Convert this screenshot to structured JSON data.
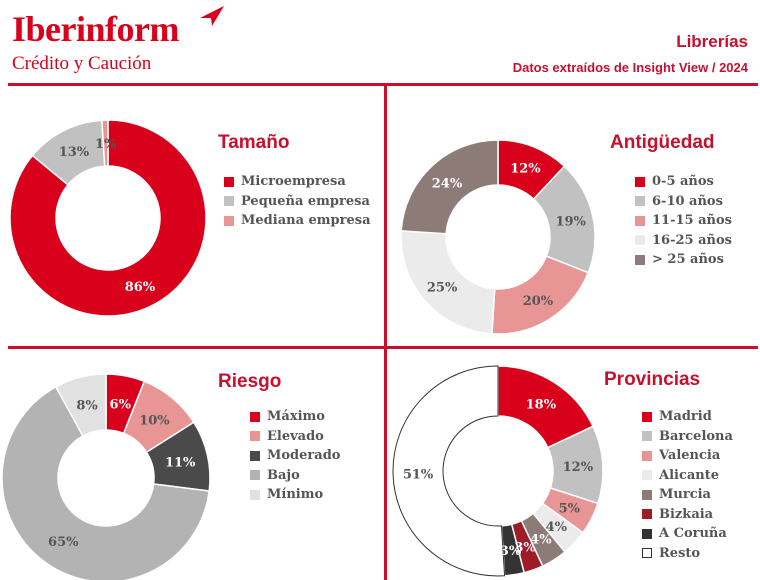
{
  "header": {
    "brand": "Iberinform",
    "tagline": "Crédito y Caución",
    "title": "Librerías",
    "subtitle": "Datos extraídos de Insight View / 2024"
  },
  "colors": {
    "brand_red": "#d9001b",
    "divider": "#c8102e"
  },
  "chart_data": [
    {
      "type": "pie",
      "title": "Tamaño",
      "categories": [
        "Microempresa",
        "Pequeña empresa",
        "Mediana empresa"
      ],
      "values": [
        86,
        13,
        1
      ],
      "labels": [
        "86%",
        "13%",
        "1%"
      ],
      "colors": [
        "#d9001b",
        "#c1c1c1",
        "#e89595"
      ],
      "legend_position": "right"
    },
    {
      "type": "pie",
      "title": "Antigüedad",
      "categories": [
        "0-5 años",
        "6-10 años",
        "11-15 años",
        "16-25 años",
        "> 25 años"
      ],
      "values": [
        12,
        19,
        20,
        25,
        24
      ],
      "labels": [
        "12%",
        "19%",
        "20%",
        "25%",
        "24%"
      ],
      "colors": [
        "#d9001b",
        "#c1c1c1",
        "#e89595",
        "#ebebeb",
        "#8c7b77"
      ],
      "legend_position": "right"
    },
    {
      "type": "pie",
      "title": "Riesgo",
      "categories": [
        "Máximo",
        "Elevado",
        "Moderado",
        "Bajo",
        "Mínimo"
      ],
      "values": [
        6,
        10,
        11,
        65,
        8
      ],
      "labels": [
        "6%",
        "10%",
        "11%",
        "65%",
        "8%"
      ],
      "colors": [
        "#d9001b",
        "#e89595",
        "#4a4a4a",
        "#b3b3b3",
        "#e1e1e1"
      ],
      "legend_position": "right"
    },
    {
      "type": "pie",
      "title": "Provincias",
      "categories": [
        "Madrid",
        "Barcelona",
        "Valencia",
        "Alicante",
        "Murcia",
        "Bizkaia",
        "A Coruña",
        "Resto"
      ],
      "values": [
        18,
        12,
        5,
        4,
        4,
        3,
        3,
        51
      ],
      "labels": [
        "18%",
        "12%",
        "5%",
        "4%",
        "4%",
        "3%",
        "3%",
        "51%"
      ],
      "colors": [
        "#d9001b",
        "#c1c1c1",
        "#e89595",
        "#ebebeb",
        "#8c7b77",
        "#9e1c28",
        "#333333",
        "#ffffff"
      ],
      "legend_position": "right"
    }
  ]
}
